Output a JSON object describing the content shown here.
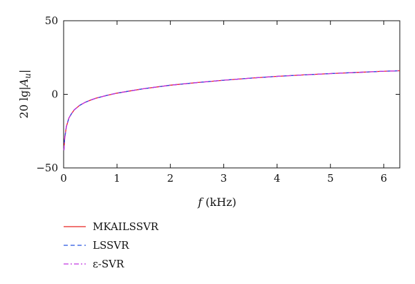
{
  "chart_data": {
    "type": "line",
    "title": "",
    "xlabel_italic": "f",
    "xlabel_unit": "(kHz)",
    "ylabel_prefix": "20 lg|",
    "ylabel_var": "A",
    "ylabel_sub": "u",
    "ylabel_suffix": "|",
    "xlim": [
      0,
      6.3
    ],
    "ylim": [
      -50,
      50
    ],
    "xticks": [
      0,
      1,
      2,
      3,
      4,
      5,
      6
    ],
    "yticks": [
      -50,
      0,
      50
    ],
    "x": [
      0.005,
      0.02,
      0.05,
      0.1,
      0.15,
      0.2,
      0.3,
      0.4,
      0.5,
      0.6,
      0.8,
      1.0,
      1.2,
      1.5,
      2.0,
      2.5,
      3.0,
      3.5,
      4.0,
      4.5,
      5.0,
      5.5,
      6.0,
      6.3
    ],
    "series": [
      {
        "name": "MKAILSSVR",
        "color": "#e8201e",
        "dash": "solid",
        "values": [
          -38,
          -30,
          -22,
          -16,
          -13,
          -10.5,
          -7.5,
          -5.5,
          -4,
          -2.7,
          -0.8,
          0.8,
          2,
          3.8,
          6.2,
          8,
          9.6,
          11,
          12.2,
          13.2,
          14.1,
          14.9,
          15.7,
          16
        ]
      },
      {
        "name": "LSSVR",
        "color": "#2050e0",
        "dash": "dashed",
        "values": [
          -38,
          -30,
          -22,
          -16,
          -13,
          -10.5,
          -7.5,
          -5.5,
          -4,
          -2.7,
          -0.8,
          0.8,
          2,
          3.8,
          6.2,
          8,
          9.6,
          11,
          12.2,
          13.2,
          14.1,
          14.9,
          15.7,
          16
        ]
      },
      {
        "name": "ε-SVR",
        "color": "#c030e0",
        "dash": "dashdot",
        "values": [
          -38,
          -30,
          -22,
          -16,
          -13,
          -10.5,
          -7.5,
          -5.5,
          -4,
          -2.7,
          -0.8,
          0.8,
          2,
          3.8,
          6.2,
          8,
          9.6,
          11,
          12.2,
          13.2,
          14.1,
          14.9,
          15.7,
          16
        ]
      }
    ],
    "grid": false,
    "legend_position": "bottom-left"
  }
}
